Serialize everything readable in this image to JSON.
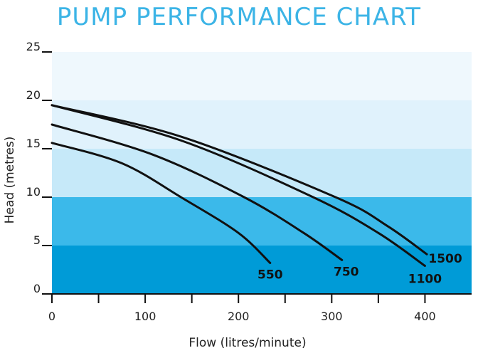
{
  "chart_data": {
    "type": "line",
    "title": "PUMP PERFORMANCE CHART",
    "xlabel": "Flow (litres/minute)",
    "ylabel": "Head (metres)",
    "xlim": [
      0,
      450
    ],
    "ylim": [
      0,
      25
    ],
    "xticks": [
      0,
      50,
      100,
      150,
      200,
      250,
      300,
      350,
      400
    ],
    "xtick_labels": [
      "0",
      "100",
      "200",
      "300",
      "400"
    ],
    "xtick_label_values": [
      0,
      100,
      200,
      300,
      400
    ],
    "yticks": [
      0,
      5,
      10,
      15,
      20,
      25
    ],
    "ytick_labels": [
      "0",
      "5",
      "10",
      "15",
      "20",
      "25"
    ],
    "bands": [
      {
        "from": 0,
        "to": 5,
        "color": "#009bd7"
      },
      {
        "from": 5,
        "to": 10,
        "color": "#3bb9ea"
      },
      {
        "from": 10,
        "to": 15,
        "color": "#c6e9f9"
      },
      {
        "from": 15,
        "to": 20,
        "color": "#e0f2fc"
      },
      {
        "from": 20,
        "to": 25,
        "color": "#eff8fd"
      }
    ],
    "title_color": "#3cb4e6",
    "series": [
      {
        "name": "550",
        "points": [
          [
            0,
            15.6
          ],
          [
            75,
            13.5
          ],
          [
            140,
            9.9
          ],
          [
            200,
            6.3
          ],
          [
            234,
            3.2
          ]
        ]
      },
      {
        "name": "750",
        "points": [
          [
            0,
            17.5
          ],
          [
            108,
            14.4
          ],
          [
            206,
            10.0
          ],
          [
            270,
            6.3
          ],
          [
            311,
            3.5
          ]
        ]
      },
      {
        "name": "1100",
        "points": [
          [
            0,
            19.5
          ],
          [
            140,
            15.8
          ],
          [
            280,
            10.0
          ],
          [
            350,
            6.3
          ],
          [
            400,
            2.9
          ]
        ]
      },
      {
        "name": "1500",
        "points": [
          [
            0,
            19.5
          ],
          [
            140,
            16.2
          ],
          [
            304,
            10.0
          ],
          [
            360,
            7.0
          ],
          [
            402,
            4.1
          ]
        ]
      }
    ]
  }
}
